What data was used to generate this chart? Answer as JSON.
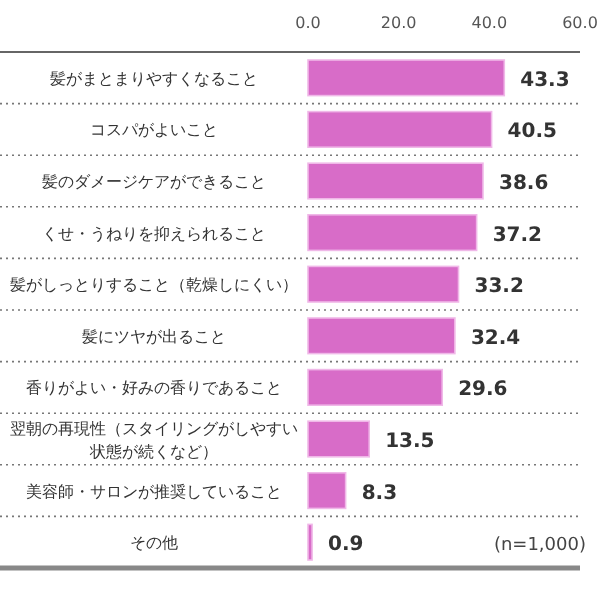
{
  "chart_data": {
    "type": "bar",
    "orientation": "horizontal",
    "categories": [
      "髪がまとまりやすくなること",
      "コスパがよいこと",
      "髪のダメージケアができること",
      "くせ・うねりを抑えられること",
      "髪がしっとりすること（乾燥しにくい）",
      "髪にツヤが出ること",
      "香りがよい・好みの香りであること",
      "翌朝の再現性（スタイリングがしやすい状態が続くなど）",
      "美容師・サロンが推奨していること",
      "その他"
    ],
    "values": [
      43.3,
      40.5,
      38.6,
      37.2,
      33.2,
      32.4,
      29.6,
      13.5,
      8.3,
      0.9
    ],
    "color": "#d86cc8",
    "xlim": [
      0,
      60
    ],
    "xticks": [
      {
        "value": 0,
        "label": "0.0"
      },
      {
        "value": 20,
        "label": "20.0"
      },
      {
        "value": 40,
        "label": "40.0"
      },
      {
        "value": 60,
        "label": "60.0"
      }
    ],
    "data_labels": true,
    "grid": "y",
    "annotations": [
      "(n=1,000)"
    ]
  }
}
